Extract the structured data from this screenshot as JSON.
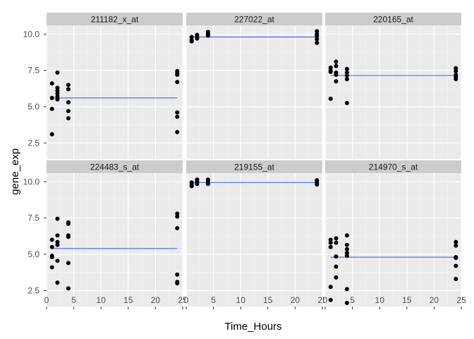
{
  "chart_data": {
    "type": "scatter",
    "layout": "facet_wrap",
    "ncol": 3,
    "xlabel": "Time_Hours",
    "ylabel": "gene_exp",
    "xlim": [
      0,
      25
    ],
    "ylim": [
      1.4,
      10.6
    ],
    "x_ticks": [
      0,
      5,
      10,
      15,
      20,
      25
    ],
    "y_ticks": [
      2.5,
      5.0,
      7.5,
      10.0
    ],
    "y_tick_labels": [
      "2.5",
      "5.0",
      "7.5",
      "10.0"
    ],
    "x_tick_labels": [
      "0",
      "5",
      "10",
      "15",
      "20",
      "25"
    ],
    "grid": true,
    "panels": [
      {
        "strip": "211182_x_at",
        "fit_y": 5.6,
        "points": [
          [
            1,
            6.6
          ],
          [
            1,
            5.6
          ],
          [
            1,
            4.85
          ],
          [
            1,
            3.1
          ],
          [
            2,
            7.35
          ],
          [
            2,
            6.3
          ],
          [
            2,
            6.1
          ],
          [
            2,
            5.9
          ],
          [
            2,
            5.7
          ],
          [
            2,
            5.5
          ],
          [
            4,
            6.5
          ],
          [
            4,
            6.2
          ],
          [
            4,
            5.3
          ],
          [
            4,
            4.7
          ],
          [
            4,
            4.2
          ],
          [
            24,
            7.45
          ],
          [
            24,
            7.3
          ],
          [
            24,
            7.2
          ],
          [
            24,
            6.7
          ],
          [
            24,
            4.6
          ],
          [
            24,
            4.3
          ],
          [
            24,
            3.25
          ]
        ]
      },
      {
        "strip": "227022_at",
        "fit_y": 9.8,
        "points": [
          [
            1,
            9.8
          ],
          [
            1,
            9.6
          ],
          [
            1,
            9.5
          ],
          [
            2,
            9.95
          ],
          [
            2,
            9.8
          ],
          [
            2,
            9.7
          ],
          [
            4,
            10.15
          ],
          [
            4,
            10.0
          ],
          [
            4,
            9.9
          ],
          [
            24,
            10.2
          ],
          [
            24,
            10.0
          ],
          [
            24,
            9.85
          ],
          [
            24,
            9.65
          ],
          [
            24,
            9.4
          ]
        ]
      },
      {
        "strip": "220165_at",
        "fit_y": 7.15,
        "points": [
          [
            1,
            7.7
          ],
          [
            1,
            7.5
          ],
          [
            1,
            7.4
          ],
          [
            1,
            5.55
          ],
          [
            2,
            8.1
          ],
          [
            2,
            7.8
          ],
          [
            2,
            7.35
          ],
          [
            2,
            7.2
          ],
          [
            2,
            6.75
          ],
          [
            4,
            7.6
          ],
          [
            4,
            7.35
          ],
          [
            4,
            7.15
          ],
          [
            4,
            6.9
          ],
          [
            4,
            5.25
          ],
          [
            24,
            7.65
          ],
          [
            24,
            7.45
          ],
          [
            24,
            7.2
          ],
          [
            24,
            7.05
          ],
          [
            24,
            6.9
          ]
        ]
      },
      {
        "strip": "224483_s_at",
        "fit_y": 5.4,
        "points": [
          [
            1,
            6.0
          ],
          [
            1,
            5.5
          ],
          [
            1,
            4.9
          ],
          [
            1,
            4.8
          ],
          [
            1,
            4.1
          ],
          [
            2,
            7.45
          ],
          [
            2,
            6.3
          ],
          [
            2,
            5.85
          ],
          [
            2,
            5.65
          ],
          [
            2,
            4.55
          ],
          [
            2,
            3.05
          ],
          [
            4,
            7.2
          ],
          [
            4,
            7.1
          ],
          [
            4,
            6.3
          ],
          [
            4,
            6.2
          ],
          [
            4,
            4.4
          ],
          [
            4,
            2.65
          ],
          [
            24,
            7.8
          ],
          [
            24,
            7.6
          ],
          [
            24,
            6.8
          ],
          [
            24,
            3.6
          ],
          [
            24,
            3.1
          ],
          [
            24,
            3.0
          ]
        ]
      },
      {
        "strip": "219155_at",
        "fit_y": 9.95,
        "points": [
          [
            1,
            9.95
          ],
          [
            1,
            9.85
          ],
          [
            1,
            9.7
          ],
          [
            2,
            10.15
          ],
          [
            2,
            10.0
          ],
          [
            2,
            9.85
          ],
          [
            4,
            10.15
          ],
          [
            4,
            10.05
          ],
          [
            4,
            9.85
          ],
          [
            24,
            10.1
          ],
          [
            24,
            9.95
          ],
          [
            24,
            9.8
          ]
        ]
      },
      {
        "strip": "214970_s_at",
        "fit_y": 4.8,
        "points": [
          [
            1,
            6.0
          ],
          [
            1,
            5.8
          ],
          [
            1,
            5.5
          ],
          [
            1,
            2.75
          ],
          [
            1,
            1.85
          ],
          [
            2,
            6.1
          ],
          [
            2,
            5.8
          ],
          [
            2,
            4.85
          ],
          [
            2,
            4.15
          ],
          [
            2,
            3.4
          ],
          [
            4,
            6.3
          ],
          [
            4,
            5.65
          ],
          [
            4,
            5.35
          ],
          [
            4,
            5.1
          ],
          [
            4,
            4.9
          ],
          [
            4,
            2.6
          ],
          [
            4,
            1.65
          ],
          [
            24,
            5.85
          ],
          [
            24,
            5.6
          ],
          [
            24,
            4.8
          ],
          [
            24,
            4.75
          ],
          [
            24,
            4.2
          ],
          [
            24,
            3.3
          ]
        ]
      }
    ],
    "colors": {
      "panel_bg": "#ebebeb",
      "grid_major": "#ffffff",
      "grid_minor": "#f5f5f5",
      "strip_bg": "#cccccc",
      "point": "#000000",
      "fit_line": "#3366ff",
      "tick_label": "#4d4d4d"
    }
  }
}
